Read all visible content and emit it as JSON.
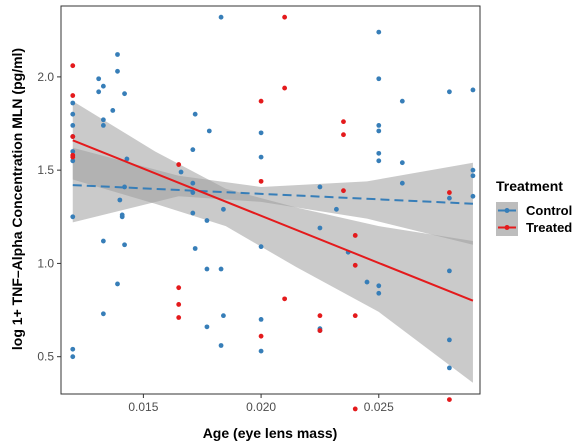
{
  "chart_data": {
    "type": "scatter",
    "title": "",
    "xlabel": "Age (eye lens mass)",
    "ylabel": "log 1+ TNF–Alpha Concentration MLN (pg/ml)",
    "xlim": [
      0.0115,
      0.0293
    ],
    "ylim": [
      0.3,
      2.38
    ],
    "x_ticks": [
      "0.015",
      "0.020",
      "0.025"
    ],
    "x_tick_values": [
      0.015,
      0.02,
      0.025
    ],
    "y_ticks": [
      "0.5",
      "1.0",
      "1.5",
      "2.0"
    ],
    "y_tick_values": [
      0.5,
      1.0,
      1.5,
      2.0
    ],
    "grid": false,
    "legend": {
      "title": "Treatment",
      "placement": "right"
    },
    "series": [
      {
        "name": "Control",
        "color": "#377EB8",
        "line_style": "dashed",
        "fit": {
          "x": [
            0.012,
            0.029
          ],
          "y": [
            1.42,
            1.32
          ]
        },
        "ci_upper": [
          [
            0.012,
            1.62
          ],
          [
            0.0165,
            1.47
          ],
          [
            0.02,
            1.41
          ],
          [
            0.0245,
            1.44
          ],
          [
            0.029,
            1.54
          ]
        ],
        "ci_lower": [
          [
            0.012,
            1.22
          ],
          [
            0.0165,
            1.36
          ],
          [
            0.02,
            1.33
          ],
          [
            0.0245,
            1.24
          ],
          [
            0.029,
            1.1
          ]
        ],
        "points": [
          [
            0.012,
            1.25
          ],
          [
            0.012,
            1.55
          ],
          [
            0.012,
            1.6
          ],
          [
            0.012,
            1.68
          ],
          [
            0.012,
            1.74
          ],
          [
            0.012,
            1.8
          ],
          [
            0.012,
            1.86
          ],
          [
            0.012,
            0.54
          ],
          [
            0.012,
            0.5
          ],
          [
            0.0131,
            1.99
          ],
          [
            0.0131,
            1.92
          ],
          [
            0.0133,
            1.95
          ],
          [
            0.0133,
            1.77
          ],
          [
            0.0133,
            1.74
          ],
          [
            0.0133,
            1.12
          ],
          [
            0.0133,
            0.73
          ],
          [
            0.0137,
            1.82
          ],
          [
            0.0139,
            2.12
          ],
          [
            0.0139,
            2.03
          ],
          [
            0.0139,
            0.89
          ],
          [
            0.014,
            1.34
          ],
          [
            0.0141,
            1.25
          ],
          [
            0.0141,
            1.26
          ],
          [
            0.0142,
            1.41
          ],
          [
            0.0142,
            1.91
          ],
          [
            0.0142,
            1.1
          ],
          [
            0.0143,
            1.56
          ],
          [
            0.0166,
            1.49
          ],
          [
            0.0171,
            1.61
          ],
          [
            0.0171,
            1.43
          ],
          [
            0.0171,
            1.38
          ],
          [
            0.0171,
            1.27
          ],
          [
            0.0172,
            1.8
          ],
          [
            0.0172,
            1.08
          ],
          [
            0.0177,
            1.23
          ],
          [
            0.0177,
            0.97
          ],
          [
            0.0177,
            0.66
          ],
          [
            0.0178,
            1.71
          ],
          [
            0.0183,
            2.32
          ],
          [
            0.0183,
            0.97
          ],
          [
            0.0183,
            0.56
          ],
          [
            0.0184,
            0.72
          ],
          [
            0.0184,
            1.29
          ],
          [
            0.02,
            1.7
          ],
          [
            0.02,
            1.57
          ],
          [
            0.02,
            1.09
          ],
          [
            0.02,
            0.7
          ],
          [
            0.02,
            0.53
          ],
          [
            0.0225,
            1.41
          ],
          [
            0.0225,
            1.19
          ],
          [
            0.0225,
            0.65
          ],
          [
            0.0225,
            0.64
          ],
          [
            0.0232,
            1.29
          ],
          [
            0.0237,
            1.06
          ],
          [
            0.0245,
            0.9
          ],
          [
            0.025,
            2.24
          ],
          [
            0.025,
            1.99
          ],
          [
            0.025,
            1.74
          ],
          [
            0.025,
            1.71
          ],
          [
            0.025,
            1.59
          ],
          [
            0.025,
            1.55
          ],
          [
            0.025,
            0.88
          ],
          [
            0.025,
            0.84
          ],
          [
            0.026,
            1.87
          ],
          [
            0.026,
            1.54
          ],
          [
            0.026,
            1.43
          ],
          [
            0.028,
            1.92
          ],
          [
            0.028,
            1.35
          ],
          [
            0.028,
            0.96
          ],
          [
            0.028,
            0.59
          ],
          [
            0.028,
            0.44
          ],
          [
            0.029,
            1.93
          ],
          [
            0.029,
            1.5
          ],
          [
            0.029,
            1.47
          ],
          [
            0.029,
            1.36
          ]
        ]
      },
      {
        "name": "Treated",
        "color": "#E41A1C",
        "line_style": "solid",
        "fit": {
          "x": [
            0.012,
            0.029
          ],
          "y": [
            1.66,
            0.8
          ]
        },
        "ci_upper": [
          [
            0.012,
            1.87
          ],
          [
            0.0155,
            1.6
          ],
          [
            0.0185,
            1.4
          ],
          [
            0.0215,
            1.3
          ],
          [
            0.025,
            1.2
          ],
          [
            0.029,
            1.12
          ]
        ],
        "ci_lower": [
          [
            0.012,
            1.45
          ],
          [
            0.0155,
            1.32
          ],
          [
            0.0185,
            1.2
          ],
          [
            0.0215,
            0.98
          ],
          [
            0.025,
            0.74
          ],
          [
            0.029,
            0.36
          ]
        ],
        "points": [
          [
            0.012,
            2.06
          ],
          [
            0.012,
            1.9
          ],
          [
            0.012,
            1.68
          ],
          [
            0.012,
            1.58
          ],
          [
            0.012,
            1.57
          ],
          [
            0.0165,
            1.53
          ],
          [
            0.0165,
            0.87
          ],
          [
            0.0165,
            0.78
          ],
          [
            0.0165,
            0.71
          ],
          [
            0.02,
            1.87
          ],
          [
            0.02,
            1.44
          ],
          [
            0.02,
            0.61
          ],
          [
            0.021,
            2.32
          ],
          [
            0.021,
            1.94
          ],
          [
            0.021,
            0.81
          ],
          [
            0.0225,
            0.72
          ],
          [
            0.0225,
            0.64
          ],
          [
            0.0235,
            1.76
          ],
          [
            0.0235,
            1.69
          ],
          [
            0.0235,
            1.39
          ],
          [
            0.024,
            1.15
          ],
          [
            0.024,
            0.99
          ],
          [
            0.024,
            0.72
          ],
          [
            0.024,
            0.22
          ],
          [
            0.028,
            1.38
          ],
          [
            0.028,
            0.27
          ]
        ]
      }
    ]
  }
}
